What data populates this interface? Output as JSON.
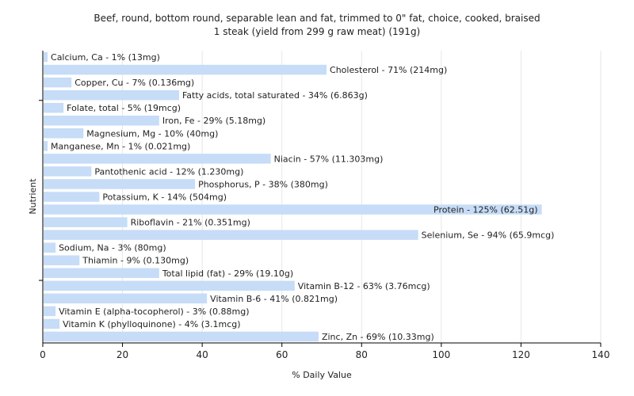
{
  "chart_data": {
    "type": "bar",
    "orientation": "horizontal",
    "title": "Beef, round, bottom round, separable lean and fat, trimmed to 0\" fat, choice, cooked, braised",
    "subtitle": "1 steak (yield from 299 g raw meat) (191g)",
    "xlabel": "% Daily Value",
    "ylabel": "Nutrient",
    "xlim": [
      0,
      140
    ],
    "xticks": [
      0,
      20,
      40,
      60,
      80,
      100,
      120,
      140
    ],
    "grid": true,
    "bar_color": "#c6dcf7",
    "categories": [
      "Calcium, Ca",
      "Cholesterol",
      "Copper, Cu",
      "Fatty acids, total saturated",
      "Folate, total",
      "Iron, Fe",
      "Magnesium, Mg",
      "Manganese, Mn",
      "Niacin",
      "Pantothenic acid",
      "Phosphorus, P",
      "Potassium, K",
      "Protein",
      "Riboflavin",
      "Selenium, Se",
      "Sodium, Na",
      "Thiamin",
      "Total lipid (fat)",
      "Vitamin B-12",
      "Vitamin B-6",
      "Vitamin E (alpha-tocopherol)",
      "Vitamin K (phylloquinone)",
      "Zinc, Zn"
    ],
    "values": [
      1,
      71,
      7,
      34,
      5,
      29,
      10,
      1,
      57,
      12,
      38,
      14,
      125,
      21,
      94,
      3,
      9,
      29,
      63,
      41,
      3,
      4,
      69
    ],
    "labels": [
      "Calcium, Ca - 1% (13mg)",
      "Cholesterol - 71% (214mg)",
      "Copper, Cu - 7% (0.136mg)",
      "Fatty acids, total saturated - 34% (6.863g)",
      "Folate, total - 5% (19mcg)",
      "Iron, Fe - 29% (5.18mg)",
      "Magnesium, Mg - 10% (40mg)",
      "Manganese, Mn - 1% (0.021mg)",
      "Niacin - 57% (11.303mg)",
      "Pantothenic acid - 12% (1.230mg)",
      "Phosphorus, P - 38% (380mg)",
      "Potassium, K - 14% (504mg)",
      "Protein - 125% (62.51g)",
      "Riboflavin - 21% (0.351mg)",
      "Selenium, Se - 94% (65.9mcg)",
      "Sodium, Na - 3% (80mg)",
      "Thiamin - 9% (0.130mg)",
      "Total lipid (fat) - 29% (19.10g)",
      "Vitamin B-12 - 63% (3.76mcg)",
      "Vitamin B-6 - 41% (0.821mg)",
      "Vitamin E (alpha-tocopherol) - 3% (0.88mg)",
      "Vitamin K (phylloquinone) - 4% (3.1mcg)",
      "Zinc, Zn - 69% (10.33mg)"
    ]
  }
}
